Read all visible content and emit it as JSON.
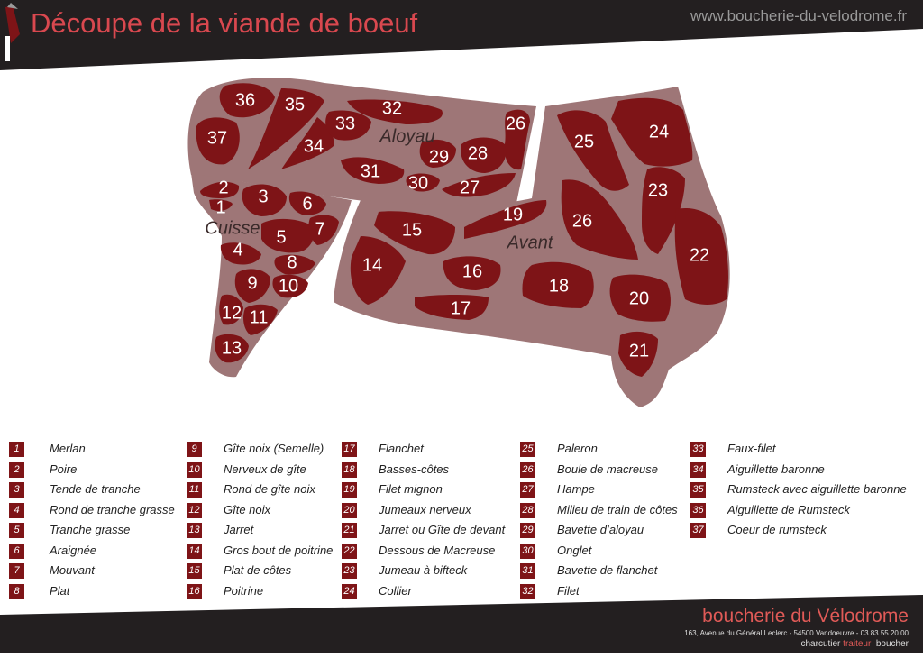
{
  "header": {
    "title": "Découpe de la viande de boeuf",
    "website": "www.boucherie-du-velodrome.fr"
  },
  "regions": {
    "aloyau": "Aloyau",
    "cuisse": "Cuisse",
    "avant": "Avant"
  },
  "cuts": [
    {
      "num": "1",
      "name": "Merlan"
    },
    {
      "num": "2",
      "name": "Poire"
    },
    {
      "num": "3",
      "name": "Tende de tranche"
    },
    {
      "num": "4",
      "name": "Rond de tranche grasse"
    },
    {
      "num": "5",
      "name": "Tranche grasse"
    },
    {
      "num": "6",
      "name": "Araignée"
    },
    {
      "num": "7",
      "name": "Mouvant"
    },
    {
      "num": "8",
      "name": "Plat"
    },
    {
      "num": "9",
      "name": "Gîte noix (Semelle)"
    },
    {
      "num": "10",
      "name": "Nerveux de gîte"
    },
    {
      "num": "11",
      "name": "Rond de gîte noix"
    },
    {
      "num": "12",
      "name": "Gîte noix"
    },
    {
      "num": "13",
      "name": "Jarret"
    },
    {
      "num": "14",
      "name": "Gros bout de poitrine"
    },
    {
      "num": "15",
      "name": "Plat de côtes"
    },
    {
      "num": "16",
      "name": "Poitrine"
    },
    {
      "num": "17",
      "name": "Flanchet"
    },
    {
      "num": "18",
      "name": "Basses-côtes"
    },
    {
      "num": "19",
      "name": "Filet mignon"
    },
    {
      "num": "20",
      "name": "Jumeaux nerveux"
    },
    {
      "num": "21",
      "name": "Jarret ou Gîte de devant"
    },
    {
      "num": "22",
      "name": "Dessous de Macreuse"
    },
    {
      "num": "23",
      "name": "Jumeau à bifteck"
    },
    {
      "num": "24",
      "name": "Collier"
    },
    {
      "num": "25",
      "name": "Paleron"
    },
    {
      "num": "26",
      "name": "Boule de macreuse"
    },
    {
      "num": "27",
      "name": "Hampe"
    },
    {
      "num": "28",
      "name": "Milieu de train de côtes"
    },
    {
      "num": "29",
      "name": "Bavette d’aloyau"
    },
    {
      "num": "30",
      "name": "Onglet"
    },
    {
      "num": "31",
      "name": "Bavette de flanchet"
    },
    {
      "num": "32",
      "name": "Filet"
    },
    {
      "num": "33",
      "name": "Faux-filet"
    },
    {
      "num": "34",
      "name": "Aiguillette baronne"
    },
    {
      "num": "35",
      "name": "Rumsteck avec aiguillette baronne"
    },
    {
      "num": "36",
      "name": "Aiguillette de Rumsteck"
    },
    {
      "num": "37",
      "name": "Coeur de rumsteck"
    }
  ],
  "footer": {
    "brand": "boucherie du Vélodrome",
    "address": "163, Avenue du Général Leclerc - 54500 Vandoeuvre - 03 83 55 20 00",
    "tag_1": "charcutier",
    "tag_2": "traiteur",
    "tag_3": "boucher"
  },
  "colors": {
    "dark": "#231f20",
    "accent": "#d9484f",
    "body": "#9e7677",
    "meat": "#7e1417"
  }
}
